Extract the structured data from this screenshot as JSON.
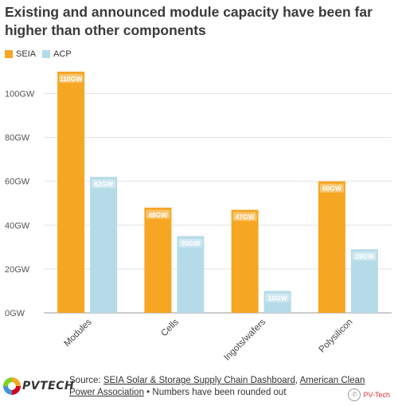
{
  "chart_data": {
    "type": "bar",
    "title": "Existing and announced module capacity have been far higher than other components",
    "categories": [
      "Modules",
      "Cells",
      "Ingots/wafers",
      "Polysilicon"
    ],
    "series": [
      {
        "name": "SEIA",
        "color": "#f5a623",
        "values": [
          110,
          48,
          47,
          60
        ],
        "labels": [
          "110GW",
          "48GW",
          "47GW",
          "60GW"
        ]
      },
      {
        "name": "ACP",
        "color": "#b5dbe8",
        "values": [
          62,
          35,
          10,
          29
        ],
        "labels": [
          "62GW",
          "35GW",
          "10GW",
          "29GW"
        ]
      }
    ],
    "ylim": [
      0,
      110
    ],
    "yticks": [
      0,
      20,
      40,
      60,
      80,
      100
    ],
    "yticklabels": [
      "0GW",
      "20GW",
      "40GW",
      "60GW",
      "80GW",
      "100GW"
    ],
    "grid": true,
    "legend": "top-left"
  },
  "footer": {
    "logo_text": "PVTECH",
    "source_prefix": "Source: ",
    "source_link1": "SEIA Solar & Storage Supply Chain Dashboard",
    "source_sep": ", ",
    "source_link2": "American Clean Power Association",
    "source_note": " • Numbers have been rounded out",
    "watermark": "PV-Tech"
  }
}
